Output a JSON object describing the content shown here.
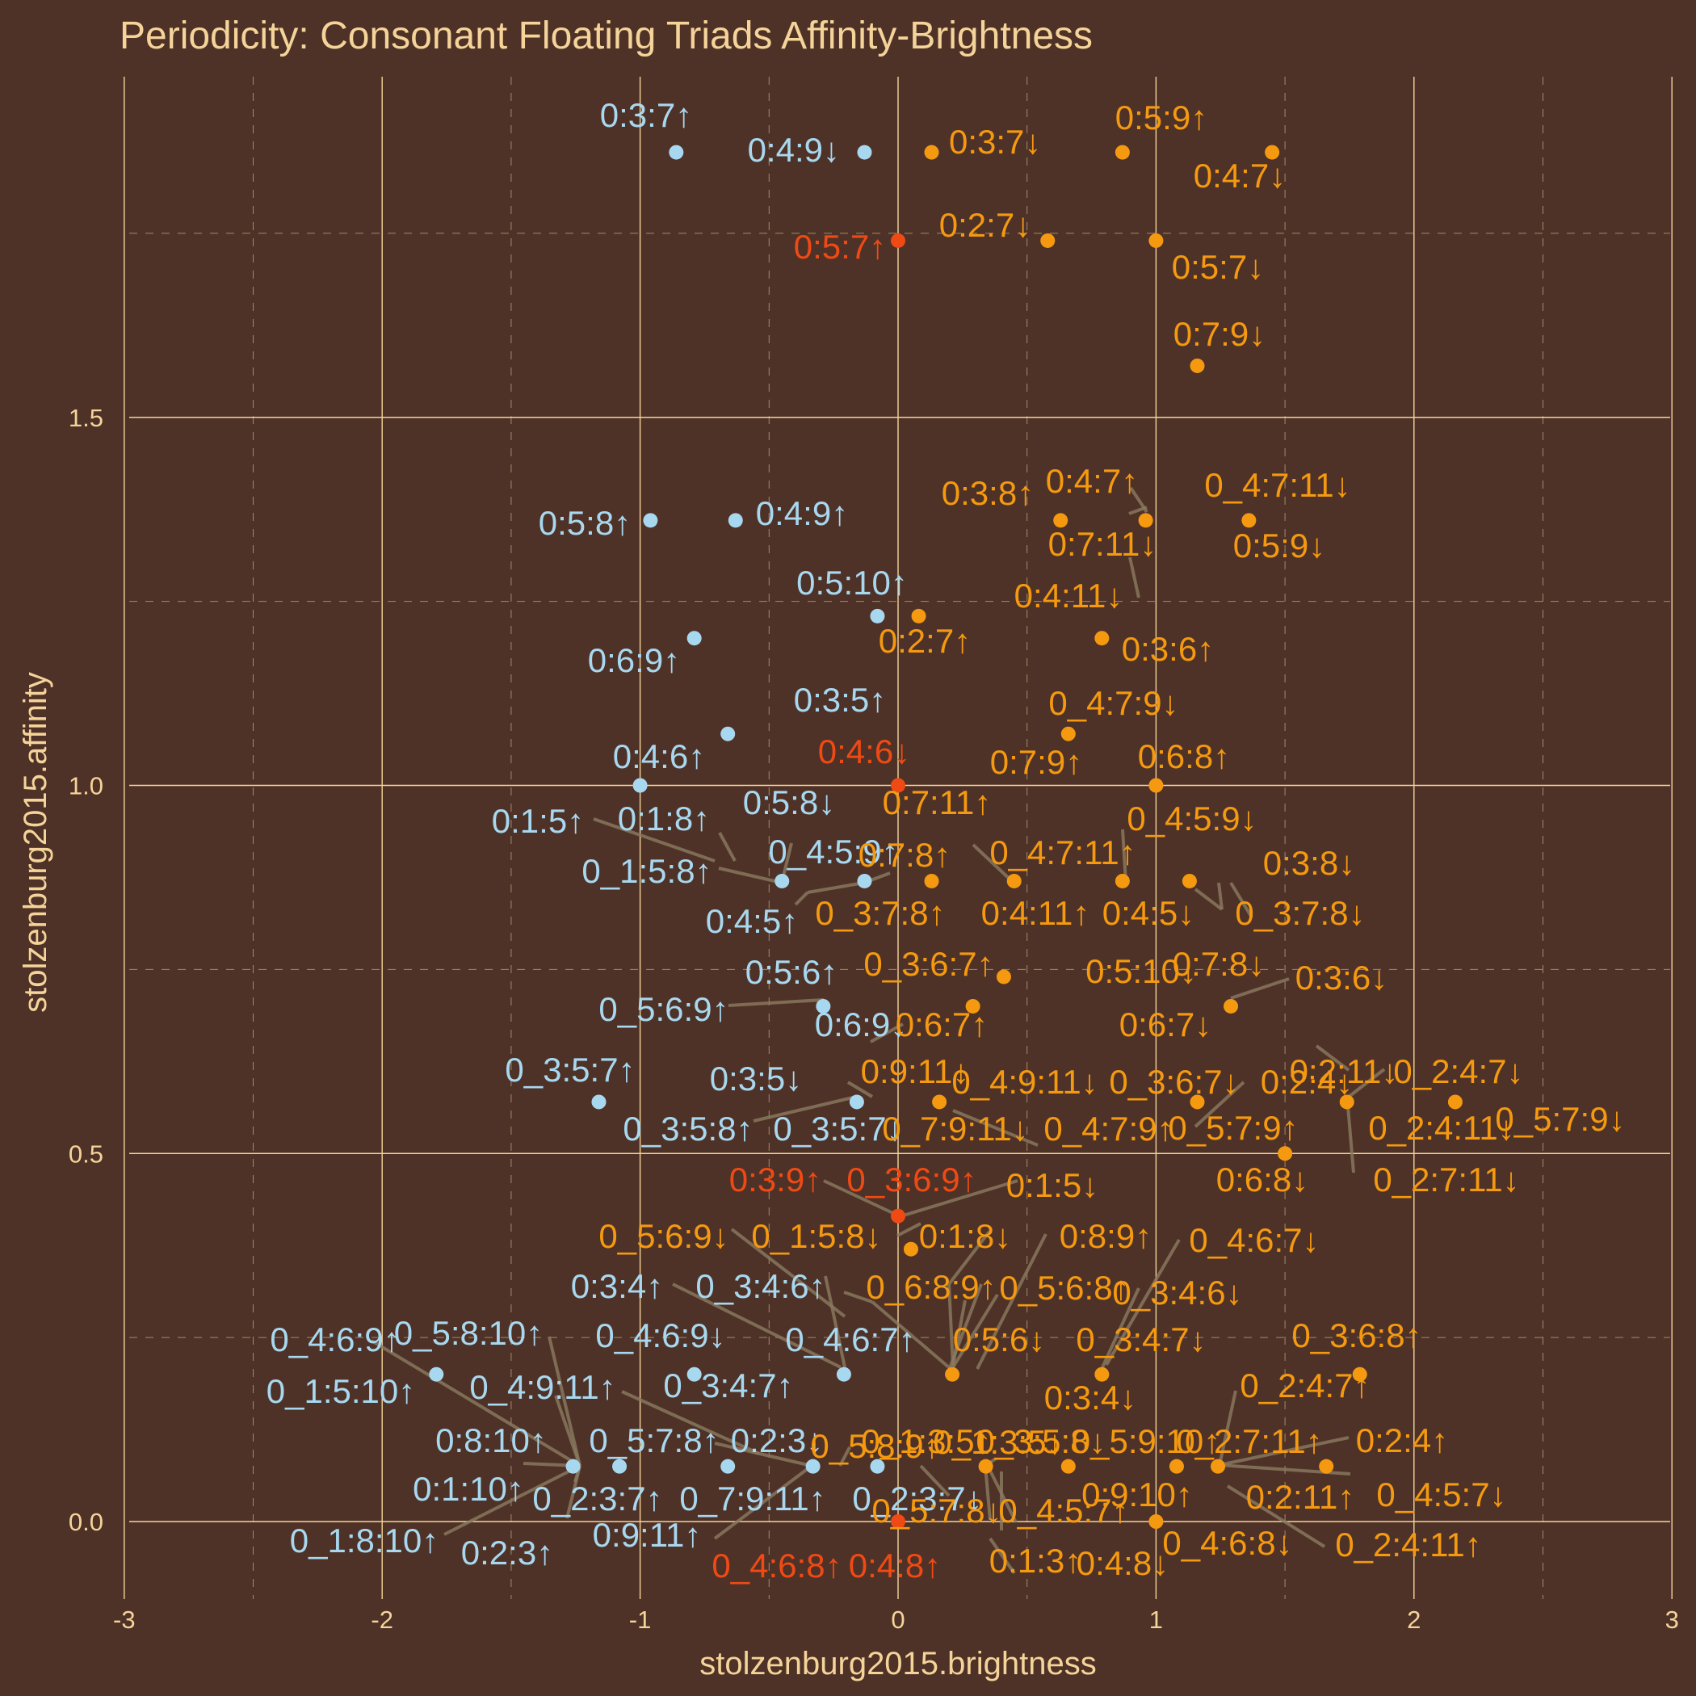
{
  "chart_data": {
    "type": "scatter",
    "title": "Periodicity: Consonant Floating Triads Affinity-Brightness",
    "xlabel": "stolzenburg2015.brightness",
    "ylabel": "stolzenburg2015.affinity",
    "xlim": [
      -3,
      3
    ],
    "ylim": [
      -0.1,
      1.95
    ],
    "x_ticks": [
      -3,
      -2,
      -1,
      0,
      1,
      2,
      3
    ],
    "y_ticks": [
      0.0,
      0.5,
      1.0,
      1.5
    ],
    "x_tick_labels": [
      "-3",
      "-2",
      "-1",
      "0",
      "1",
      "2",
      "3"
    ],
    "y_tick_labels": [
      "0.0",
      "0.5",
      "1.0",
      "1.5"
    ],
    "grid": true,
    "colors": {
      "minor": "#a8d8f0",
      "major": "#f59a10",
      "neutral": "#f04a14"
    },
    "points": [
      {
        "label": "0:3:7↑",
        "x": -0.86,
        "y": 1.86,
        "group": "minor"
      },
      {
        "label": "0:4:9↓",
        "x": -0.13,
        "y": 1.86,
        "group": "minor"
      },
      {
        "label": "0:3:7↓",
        "x": 0.13,
        "y": 1.86,
        "group": "major"
      },
      {
        "label": "0:5:9↑",
        "x": 0.87,
        "y": 1.86,
        "group": "major"
      },
      {
        "label": "0:4:7↓",
        "x": 1.45,
        "y": 1.86,
        "group": "major"
      },
      {
        "label": "0:5:7↑",
        "x": 0.0,
        "y": 1.74,
        "group": "neutral"
      },
      {
        "label": "0:2:7↓",
        "x": 0.58,
        "y": 1.74,
        "group": "major"
      },
      {
        "label": "0:5:7↓",
        "x": 1.0,
        "y": 1.74,
        "group": "major"
      },
      {
        "label": "0:7:9↓",
        "x": 1.16,
        "y": 1.57,
        "group": "major"
      },
      {
        "label": "0:5:8↑",
        "x": -0.96,
        "y": 1.36,
        "group": "minor"
      },
      {
        "label": "0:4:9↑",
        "x": -0.63,
        "y": 1.36,
        "group": "minor"
      },
      {
        "label": "0:3:8↑",
        "x": 0.63,
        "y": 1.36,
        "group": "major"
      },
      {
        "label": "0:4:7↑",
        "x": 0.96,
        "y": 1.36,
        "group": "major"
      },
      {
        "label": "0_4:7:11↓",
        "x": 0.96,
        "y": 1.36,
        "group": "major"
      },
      {
        "label": "0:7:11↓",
        "x": 0.96,
        "y": 1.36,
        "group": "major"
      },
      {
        "label": "0:5:9↓",
        "x": 1.36,
        "y": 1.36,
        "group": "major"
      },
      {
        "label": "0:5:10↑",
        "x": -0.08,
        "y": 1.23,
        "group": "minor"
      },
      {
        "label": "0:2:7↑",
        "x": 0.08,
        "y": 1.23,
        "group": "major"
      },
      {
        "label": "0:6:9↑",
        "x": -0.79,
        "y": 1.2,
        "group": "minor"
      },
      {
        "label": "0:4:11↓",
        "x": 0.79,
        "y": 1.2,
        "group": "major"
      },
      {
        "label": "0:3:6↑",
        "x": 0.79,
        "y": 1.2,
        "group": "major"
      },
      {
        "label": "0:3:5↑",
        "x": -0.66,
        "y": 1.07,
        "group": "minor"
      },
      {
        "label": "0_4:7:9↓",
        "x": 0.66,
        "y": 1.07,
        "group": "major"
      },
      {
        "label": "0:4:6↑",
        "x": -1.0,
        "y": 1.0,
        "group": "minor"
      },
      {
        "label": "0:4:6↓",
        "x": 0.0,
        "y": 1.0,
        "group": "neutral"
      },
      {
        "label": "0:7:9↑",
        "x": 1.0,
        "y": 1.0,
        "group": "major"
      },
      {
        "label": "0:6:8↑",
        "x": 1.0,
        "y": 1.0,
        "group": "major"
      },
      {
        "label": "0:1:5↑",
        "x": -0.45,
        "y": 0.87,
        "group": "minor"
      },
      {
        "label": "0:1:8↑",
        "x": -0.45,
        "y": 0.87,
        "group": "minor"
      },
      {
        "label": "0_1:5:8↑",
        "x": -0.45,
        "y": 0.87,
        "group": "minor"
      },
      {
        "label": "0:5:8↓",
        "x": -0.45,
        "y": 0.87,
        "group": "minor"
      },
      {
        "label": "0_4:5:9↑",
        "x": -0.13,
        "y": 0.87,
        "group": "minor"
      },
      {
        "label": "0:4:5↑",
        "x": -0.13,
        "y": 0.87,
        "group": "minor"
      },
      {
        "label": "0:7:8↑",
        "x": 0.13,
        "y": 0.87,
        "group": "major"
      },
      {
        "label": "0_3:7:8↑",
        "x": 0.13,
        "y": 0.87,
        "group": "major"
      },
      {
        "label": "0:7:11↑",
        "x": 0.45,
        "y": 0.87,
        "group": "major"
      },
      {
        "label": "0_4:7:11↑",
        "x": 0.45,
        "y": 0.87,
        "group": "major"
      },
      {
        "label": "0:4:11↑",
        "x": 0.45,
        "y": 0.87,
        "group": "major"
      },
      {
        "label": "0_4:5:9↓",
        "x": 0.87,
        "y": 0.87,
        "group": "major"
      },
      {
        "label": "0:4:5↓",
        "x": 0.87,
        "y": 0.87,
        "group": "major"
      },
      {
        "label": "0:3:8↓",
        "x": 1.13,
        "y": 0.87,
        "group": "major"
      },
      {
        "label": "0_3:7:8↓",
        "x": 1.13,
        "y": 0.87,
        "group": "major"
      },
      {
        "label": "0:7:8↓",
        "x": 1.13,
        "y": 0.87,
        "group": "major"
      },
      {
        "label": "0_3:6:7↑",
        "x": 0.41,
        "y": 0.74,
        "group": "major"
      },
      {
        "label": "0:5:10↓",
        "x": 0.41,
        "y": 0.74,
        "group": "major"
      },
      {
        "label": "0:5:6↑",
        "x": -0.29,
        "y": 0.7,
        "group": "minor"
      },
      {
        "label": "0_5:6:9↑",
        "x": -0.29,
        "y": 0.7,
        "group": "minor"
      },
      {
        "label": "0:6:9↓",
        "x": -0.29,
        "y": 0.7,
        "group": "minor"
      },
      {
        "label": "0:6:7↑",
        "x": 0.29,
        "y": 0.7,
        "group": "major"
      },
      {
        "label": "0:6:7↓",
        "x": 1.29,
        "y": 0.7,
        "group": "major"
      },
      {
        "label": "0:3:6↓",
        "x": 1.29,
        "y": 0.7,
        "group": "major"
      },
      {
        "label": "0_3:5:7↑",
        "x": -1.16,
        "y": 0.57,
        "group": "minor"
      },
      {
        "label": "0:3:5↓",
        "x": -0.16,
        "y": 0.57,
        "group": "minor"
      },
      {
        "label": "0_3:5:8↑",
        "x": -0.16,
        "y": 0.57,
        "group": "minor"
      },
      {
        "label": "0_3:5:7↓",
        "x": -0.16,
        "y": 0.57,
        "group": "minor"
      },
      {
        "label": "0:9:11↓",
        "x": 0.16,
        "y": 0.57,
        "group": "major"
      },
      {
        "label": "0_4:9:11↓",
        "x": 0.16,
        "y": 0.57,
        "group": "major"
      },
      {
        "label": "0_7:9:11↓",
        "x": 0.16,
        "y": 0.57,
        "group": "major"
      },
      {
        "label": "0_4:7:9↑",
        "x": 0.16,
        "y": 0.57,
        "group": "major"
      },
      {
        "label": "0_3:6:7↓",
        "x": 1.16,
        "y": 0.57,
        "group": "major"
      },
      {
        "label": "0:2:4↓",
        "x": 1.16,
        "y": 0.57,
        "group": "major"
      },
      {
        "label": "0:2:11↓",
        "x": 1.74,
        "y": 0.57,
        "group": "major"
      },
      {
        "label": "0_2:4:7↓",
        "x": 1.74,
        "y": 0.57,
        "group": "major"
      },
      {
        "label": "0_2:4:11↓",
        "x": 1.74,
        "y": 0.57,
        "group": "major"
      },
      {
        "label": "0_2:7:11↓",
        "x": 1.74,
        "y": 0.57,
        "group": "major"
      },
      {
        "label": "0_5:7:9↓",
        "x": 2.16,
        "y": 0.57,
        "group": "major"
      },
      {
        "label": "0_5:7:9↑",
        "x": 1.5,
        "y": 0.5,
        "group": "major"
      },
      {
        "label": "0:6:8↓",
        "x": 1.5,
        "y": 0.5,
        "group": "major"
      },
      {
        "label": "0:3:9↑",
        "x": 0.0,
        "y": 0.415,
        "group": "neutral"
      },
      {
        "label": "0_3:6:9↑",
        "x": 0.0,
        "y": 0.415,
        "group": "neutral"
      },
      {
        "label": "0:1:5↓",
        "x": 0.05,
        "y": 0.37,
        "group": "major"
      },
      {
        "label": "0:1:8↓",
        "x": 0.05,
        "y": 0.37,
        "group": "major"
      },
      {
        "label": "0_5:6:9↓",
        "x": 0.21,
        "y": 0.2,
        "group": "major"
      },
      {
        "label": "0_1:5:8↓",
        "x": 0.21,
        "y": 0.2,
        "group": "major"
      },
      {
        "label": "0:8:9↑",
        "x": 0.21,
        "y": 0.2,
        "group": "major"
      },
      {
        "label": "0_6:8:9↑",
        "x": 0.21,
        "y": 0.2,
        "group": "major"
      },
      {
        "label": "0_5:6:8↑",
        "x": 0.21,
        "y": 0.2,
        "group": "major"
      },
      {
        "label": "0:5:6↓",
        "x": 0.21,
        "y": 0.2,
        "group": "major"
      },
      {
        "label": "0_4:6:7↓",
        "x": 0.79,
        "y": 0.2,
        "group": "major"
      },
      {
        "label": "0_3:4:6↓",
        "x": 0.79,
        "y": 0.2,
        "group": "major"
      },
      {
        "label": "0_3:4:7↓",
        "x": 0.79,
        "y": 0.2,
        "group": "major"
      },
      {
        "label": "0:3:4↓",
        "x": 0.79,
        "y": 0.2,
        "group": "major"
      },
      {
        "label": "0_3:6:8↑",
        "x": 1.79,
        "y": 0.2,
        "group": "major"
      },
      {
        "label": "0:3:4↑",
        "x": -0.21,
        "y": 0.2,
        "group": "minor"
      },
      {
        "label": "0_3:4:6↑",
        "x": -0.21,
        "y": 0.2,
        "group": "minor"
      },
      {
        "label": "0_4:6:7↑",
        "x": -0.21,
        "y": 0.2,
        "group": "minor"
      },
      {
        "label": "0_4:6:9↓",
        "x": -0.79,
        "y": 0.2,
        "group": "minor"
      },
      {
        "label": "0_3:4:7↑",
        "x": -0.79,
        "y": 0.2,
        "group": "minor"
      },
      {
        "label": "0_4:6:9↑",
        "x": -1.79,
        "y": 0.2,
        "group": "minor"
      },
      {
        "label": "0_5:8:10↑",
        "x": -1.26,
        "y": 0.075,
        "group": "minor"
      },
      {
        "label": "0_1:5:10↑",
        "x": -1.26,
        "y": 0.075,
        "group": "minor"
      },
      {
        "label": "0_4:9:11↑",
        "x": -0.33,
        "y": 0.075,
        "group": "minor"
      },
      {
        "label": "0:8:10↑",
        "x": -1.26,
        "y": 0.075,
        "group": "minor"
      },
      {
        "label": "0_5:7:8↑",
        "x": -1.08,
        "y": 0.075,
        "group": "minor"
      },
      {
        "label": "0:1:10↑",
        "x": -1.26,
        "y": 0.075,
        "group": "minor"
      },
      {
        "label": "0_2:3:7↑",
        "x": -1.08,
        "y": 0.075,
        "group": "minor"
      },
      {
        "label": "0_1:8:10↑",
        "x": -1.26,
        "y": 0.075,
        "group": "minor"
      },
      {
        "label": "0:2:3↑",
        "x": -1.08,
        "y": 0.075,
        "group": "minor"
      },
      {
        "label": "0:2:3↓",
        "x": -0.33,
        "y": 0.075,
        "group": "minor"
      },
      {
        "label": "0_7:9:11↑",
        "x": -0.66,
        "y": 0.075,
        "group": "minor"
      },
      {
        "label": "0:9:11↑",
        "x": -0.33,
        "y": 0.075,
        "group": "minor"
      },
      {
        "label": "0_2:3:7↓",
        "x": -0.08,
        "y": 0.075,
        "group": "minor"
      },
      {
        "label": "0_5:8:9↑",
        "x": 0.34,
        "y": 0.075,
        "group": "major"
      },
      {
        "label": "0_1:3:5↑",
        "x": 0.34,
        "y": 0.075,
        "group": "major"
      },
      {
        "label": "0_3:5:8↓",
        "x": 0.34,
        "y": 0.075,
        "group": "major"
      },
      {
        "label": "0_1:3:5↓",
        "x": 0.66,
        "y": 0.075,
        "group": "major"
      },
      {
        "label": "0_5:9:10↑",
        "x": 1.08,
        "y": 0.075,
        "group": "major"
      },
      {
        "label": "0_2:7:11↑",
        "x": 1.24,
        "y": 0.075,
        "group": "major"
      },
      {
        "label": "0_2:4:7↑",
        "x": 1.24,
        "y": 0.075,
        "group": "major"
      },
      {
        "label": "0:2:4↑",
        "x": 1.66,
        "y": 0.075,
        "group": "major"
      },
      {
        "label": "0_4:5:7↓",
        "x": 1.66,
        "y": 0.075,
        "group": "major"
      },
      {
        "label": "0:2:11↑",
        "x": 1.24,
        "y": 0.075,
        "group": "major"
      },
      {
        "label": "0:9:10↑",
        "x": 0.66,
        "y": 0.075,
        "group": "major"
      },
      {
        "label": "0_5:7:8↓",
        "x": 0.34,
        "y": 0.075,
        "group": "major"
      },
      {
        "label": "0_4:5:7↑",
        "x": 0.66,
        "y": 0.075,
        "group": "major"
      },
      {
        "label": "0:1:3↑",
        "x": 0.34,
        "y": 0.075,
        "group": "major"
      },
      {
        "label": "0_2:4:11↑",
        "x": 1.24,
        "y": 0.075,
        "group": "major"
      },
      {
        "label": "0_4:6:8↓",
        "x": 1.0,
        "y": 0.0,
        "group": "major"
      },
      {
        "label": "0:4:8↓",
        "x": 1.0,
        "y": 0.0,
        "group": "major"
      },
      {
        "label": "0_4:6:8↑",
        "x": 0.0,
        "y": 0.0,
        "group": "neutral"
      },
      {
        "label": "0:4:8↑",
        "x": 0.0,
        "y": 0.0,
        "group": "neutral"
      }
    ]
  }
}
